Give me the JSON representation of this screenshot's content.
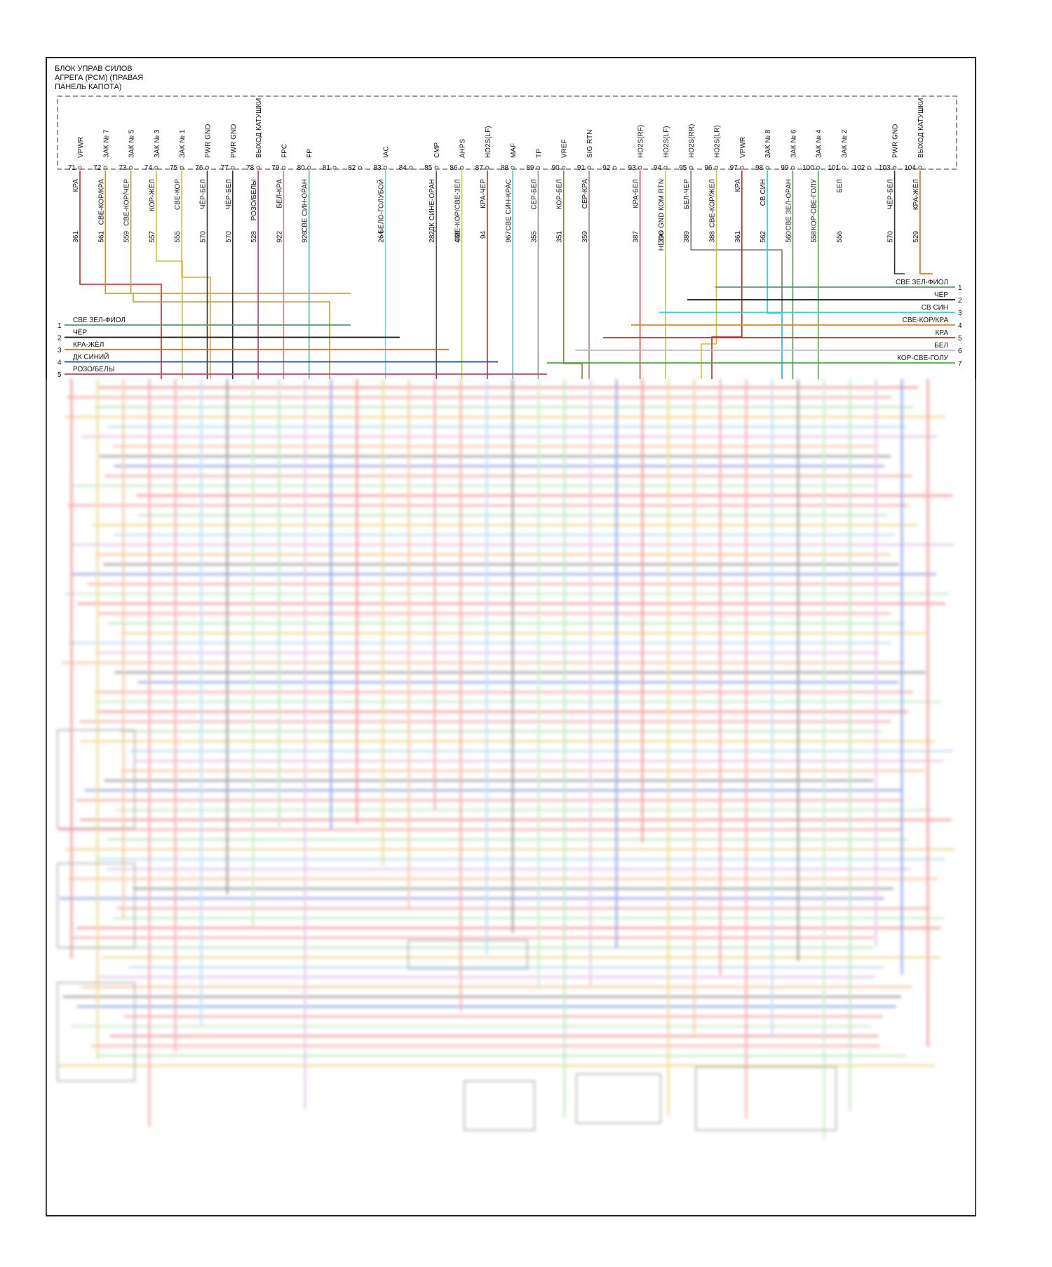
{
  "pcm": {
    "title": "БЛОК УПРАВ СИЛОВ\nАГРЕГА (PCM) (ПРАВАЯ\nПАНЕЛЬ КАПОТА)"
  },
  "pins": [
    {
      "pin": "71",
      "sig": "VPWR",
      "circ": "361",
      "wire": "КРА",
      "color": "#dd1f1f"
    },
    {
      "pin": "72",
      "sig": "ЗАК № 7",
      "circ": "561",
      "wire": "СВЕ-КОР/КРА",
      "color": "#d98a1f"
    },
    {
      "pin": "73",
      "sig": "ЗАК № 5",
      "circ": "559",
      "wire": "СВЕ-КОР/ЧЕР",
      "color": "#c79a3c"
    },
    {
      "pin": "74",
      "sig": "ЗАК № 3",
      "circ": "557",
      "wire": "КОР-ЖЁЛ",
      "color": "#cfc23a"
    },
    {
      "pin": "75",
      "sig": "ЗАК № 1",
      "circ": "555",
      "wire": "СВЕ-КОР",
      "color": "#e0b020"
    },
    {
      "pin": "76",
      "sig": "PWR GND",
      "circ": "570",
      "wire": "ЧЁР-БЕЛ",
      "color": "#333333"
    },
    {
      "pin": "77",
      "sig": "PWR GND",
      "circ": "570",
      "wire": "ЧЁР-БЕЛ",
      "color": "#333333"
    },
    {
      "pin": "78",
      "sig": "ВЫХОД КАТУШКИ",
      "circ": "528",
      "wire": "РОЗО/БЕЛЫ",
      "color": "#c43a7a"
    },
    {
      "pin": "79",
      "sig": "FPC",
      "circ": "922",
      "wire": "БЕЛ-КРА",
      "color": "#c88a8a"
    },
    {
      "pin": "80",
      "sig": "FP",
      "circ": "926",
      "wire": "СВЕ СИН-ОРАН",
      "color": "#49b8a8"
    },
    {
      "pin": "81",
      "sig": "",
      "circ": "",
      "wire": "",
      "color": ""
    },
    {
      "pin": "82",
      "sig": "",
      "circ": "",
      "wire": "",
      "color": ""
    },
    {
      "pin": "83",
      "sig": "IAC",
      "circ": "264",
      "wire": "БЕЛО-ГОЛУБОЙ",
      "color": "#7fd3e0"
    },
    {
      "pin": "84",
      "sig": "",
      "circ": "",
      "wire": "",
      "color": ""
    },
    {
      "pin": "85",
      "sig": "CMP",
      "circ": "282",
      "wire": "ДК СИНЕ-ОРАН",
      "color": "#555566"
    },
    {
      "pin": "86",
      "sig": "AHPS",
      "circ": "468",
      "wire": "СВЕ-КОР/СВЕ-ЗЕЛ",
      "color": "#a8d848"
    },
    {
      "pin": "87",
      "sig": "HO2S(LF)",
      "circ": "94",
      "wire": "КРА-ЧЕР",
      "color": "#b02525"
    },
    {
      "pin": "88",
      "sig": "MAF",
      "circ": "967",
      "wire": "СВЕ СИН-КРАС",
      "color": "#6ab8c8"
    },
    {
      "pin": "89",
      "sig": "TP",
      "circ": "355",
      "wire": "СЕР-БЕЛ",
      "color": "#9a9a9a"
    },
    {
      "pin": "90",
      "sig": "VREF",
      "circ": "351",
      "wire": "КОР-БЕЛ",
      "color": "#9a7a3a"
    },
    {
      "pin": "91",
      "sig": "SIG RTN",
      "circ": "359",
      "wire": "СЕР-КРА",
      "color": "#b08080"
    },
    {
      "pin": "92",
      "sig": "",
      "circ": "",
      "wire": "",
      "color": ""
    },
    {
      "pin": "93",
      "sig": "HO2S(RF)",
      "circ": "387",
      "wire": "КРА-БЕЛ",
      "color": "#cc4444"
    },
    {
      "pin": "94",
      "sig": "HO2S(LF)",
      "circ": "396",
      "wire": "HEGO GND КОМ RTN",
      "color": "#a8d848"
    },
    {
      "pin": "95",
      "sig": "HO2S(RR)",
      "circ": "389",
      "wire": "БЕЛ-ЧЕР",
      "color": "#777777"
    },
    {
      "pin": "96",
      "sig": "HO2S(LR)",
      "circ": "388",
      "wire": "СВЕ-КОР/ЖЕЛ",
      "color": "#e0c020"
    },
    {
      "pin": "97",
      "sig": "VPWR",
      "circ": "361",
      "wire": "КРА",
      "color": "#dd1f1f"
    },
    {
      "pin": "98",
      "sig": "ЗАК № 8",
      "circ": "562",
      "wire": "СВ СИН",
      "color": "#22d4e8"
    },
    {
      "pin": "99",
      "sig": "ЗАК № 6",
      "circ": "560",
      "wire": "СВЕ ЗЕЛ-ОРАН",
      "color": "#3fa84a"
    },
    {
      "pin": "100",
      "sig": "ЗАК № 4",
      "circ": "558",
      "wire": "КОР-СВЕ-ГОЛУ",
      "color": "#4aa84a"
    },
    {
      "pin": "101",
      "sig": "ЗАК № 2",
      "circ": "556",
      "wire": "БЕЛ",
      "color": "#bbbbbb"
    },
    {
      "pin": "102",
      "sig": "",
      "circ": "",
      "wire": "",
      "color": ""
    },
    {
      "pin": "103",
      "sig": "PWR GND",
      "circ": "570",
      "wire": "ЧЁР-БЕЛ",
      "color": "#333333"
    },
    {
      "pin": "104",
      "sig": "ВЫХОД КАТУШКИ",
      "circ": "529",
      "wire": "КРА-ЖЁЛ",
      "color": "#e06010"
    }
  ],
  "left_connector": [
    {
      "num": "1",
      "label": "СВЕ ЗЕЛ-ФИОЛ",
      "color": "#5a9a6a"
    },
    {
      "num": "2",
      "label": "ЧЁР",
      "color": "#111111"
    },
    {
      "num": "3",
      "label": "КРА-ЖЁЛ",
      "color": "#e06010"
    },
    {
      "num": "4",
      "label": "ДК СИНИЙ",
      "color": "#1b3fb0"
    },
    {
      "num": "5",
      "label": "РОЗО/БЕЛЫ",
      "color": "#c43a7a"
    }
  ],
  "right_connector": [
    {
      "num": "1",
      "label": "СВЕ ЗЕЛ-ФИОЛ",
      "color": "#5a9a6a"
    },
    {
      "num": "2",
      "label": "ЧЁР",
      "color": "#111111"
    },
    {
      "num": "3",
      "label": "СВ СИН",
      "color": "#22d4e8"
    },
    {
      "num": "4",
      "label": "СВЕ-КОР/КРА",
      "color": "#d98a1f"
    },
    {
      "num": "5",
      "label": "КРА",
      "color": "#dd1f1f"
    },
    {
      "num": "6",
      "label": "БЕЛ",
      "color": "#bbbbbb"
    },
    {
      "num": "7",
      "label": "КОР-СВЕ-ГОЛУ",
      "color": "#4aa84a"
    }
  ]
}
